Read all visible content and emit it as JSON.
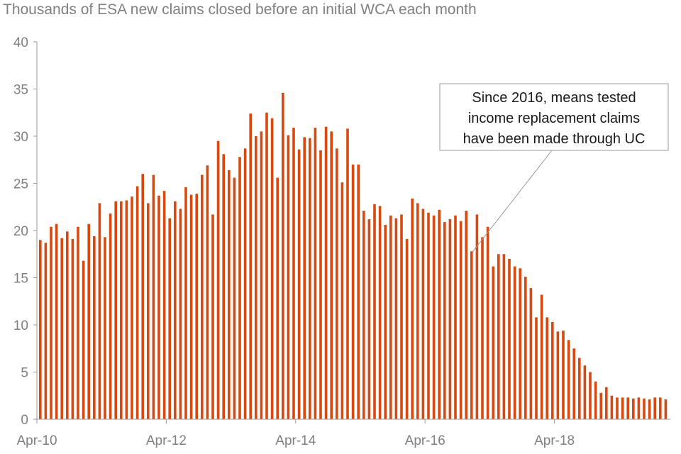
{
  "chart_data": {
    "type": "bar",
    "title": "Thousands of ESA new claims closed before an initial WCA each month",
    "xlabel": "",
    "ylabel": "",
    "ylim": [
      0,
      40
    ],
    "yticks": [
      0,
      5,
      10,
      15,
      20,
      25,
      30,
      35,
      40
    ],
    "x_tick_labels": [
      "Apr-10",
      "Apr-12",
      "Apr-14",
      "Apr-16",
      "Apr-18"
    ],
    "grid": false,
    "bar_color": "#d9480f",
    "annotation": {
      "lines": [
        "Since 2016, means tested",
        "income replacement claims",
        "have been made through UC"
      ],
      "points_to_index": 80
    },
    "values": [
      19.0,
      18.7,
      20.4,
      20.7,
      19.2,
      19.9,
      19.1,
      20.4,
      16.8,
      20.7,
      19.4,
      22.9,
      19.3,
      21.8,
      23.1,
      23.1,
      23.2,
      23.6,
      24.7,
      26.0,
      22.9,
      25.9,
      23.7,
      24.2,
      21.3,
      23.1,
      22.3,
      24.6,
      23.8,
      23.9,
      25.9,
      26.9,
      21.7,
      29.5,
      28.1,
      26.4,
      25.6,
      27.8,
      28.7,
      32.4,
      30.0,
      30.5,
      32.5,
      31.9,
      25.6,
      34.6,
      30.1,
      30.9,
      28.6,
      29.9,
      29.8,
      30.9,
      28.5,
      31.0,
      30.5,
      28.7,
      25.1,
      30.8,
      27.0,
      27.0,
      22.1,
      21.2,
      22.8,
      22.6,
      20.6,
      21.6,
      21.3,
      21.7,
      19.1,
      23.4,
      22.9,
      22.3,
      21.9,
      21.6,
      22.2,
      20.9,
      21.2,
      21.6,
      21.0,
      22.1,
      17.8,
      21.7,
      19.3,
      20.4,
      16.2,
      17.5,
      17.5,
      17.0,
      16.2,
      16.0,
      15.1,
      13.9,
      10.8,
      13.2,
      10.8,
      10.3,
      9.3,
      9.4,
      8.4,
      7.5,
      6.5,
      5.7,
      5.0,
      4.0,
      2.8,
      3.4,
      2.5,
      2.3,
      2.3,
      2.3,
      2.2,
      2.3,
      2.2,
      2.1,
      2.3,
      2.3,
      2.1
    ]
  }
}
